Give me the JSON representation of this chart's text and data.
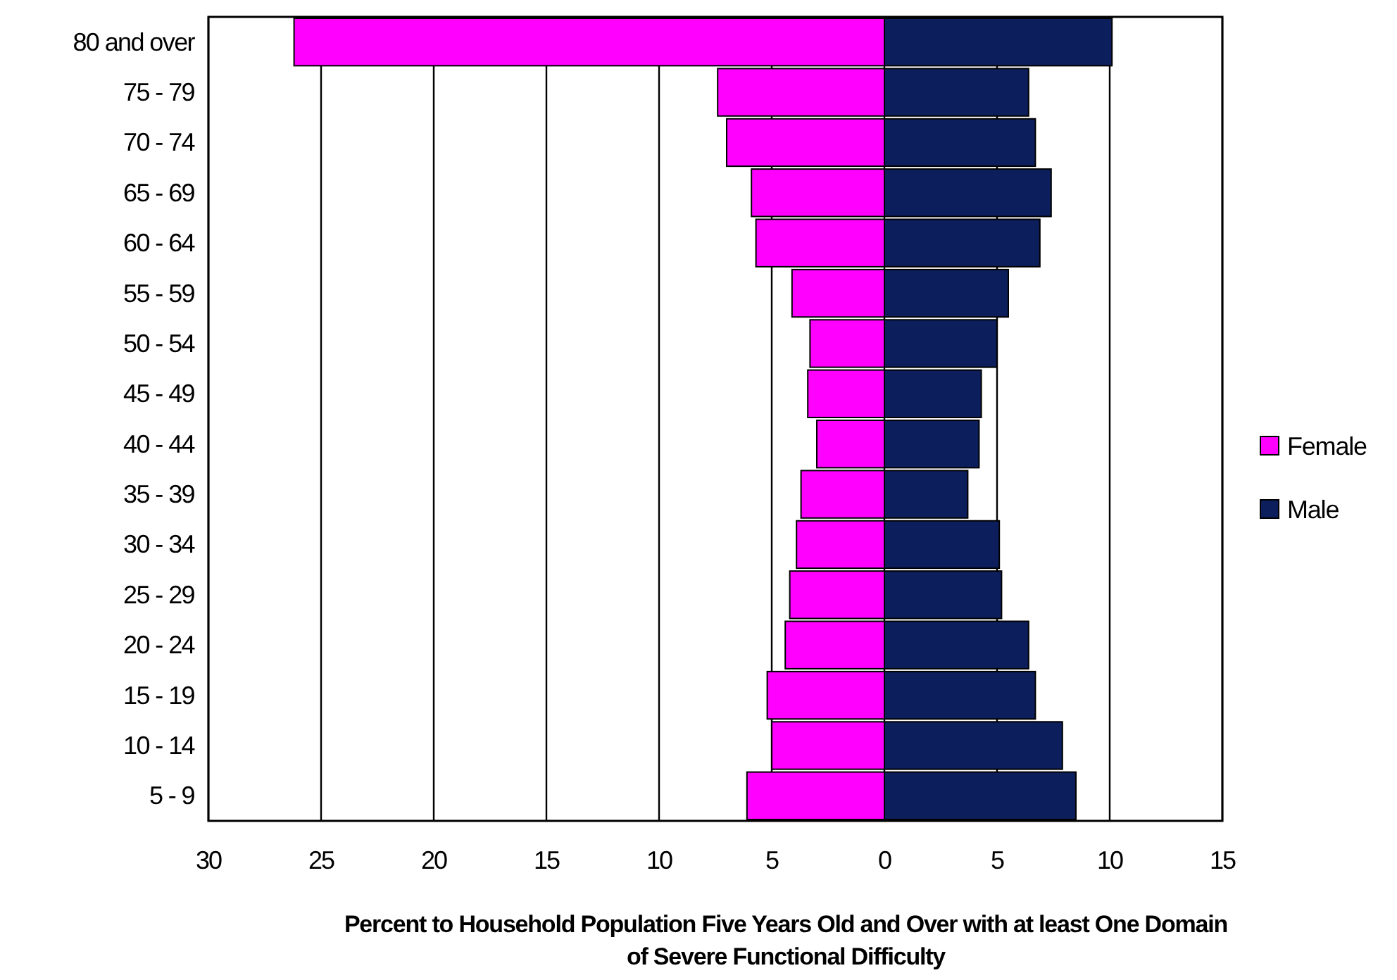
{
  "chart_data": {
    "type": "bar",
    "orientation": "horizontal",
    "xlabel": "Percent to Household Population Five Years Old and Over with at least One Domain of Severe Functional Difficulty",
    "categories": [
      "80 and over",
      "75 - 79",
      "70 - 74",
      "65 - 69",
      "60 - 64",
      "55 - 59",
      "50 - 54",
      "45 - 49",
      "40 - 44",
      "35 - 39",
      "30 - 34",
      "25 - 29",
      "20 - 24",
      "15 - 19",
      "10 - 14",
      "5 -  9"
    ],
    "series": [
      {
        "name": "Female",
        "color": "#ff00ff",
        "values": [
          -26.2,
          -7.4,
          -7.0,
          -5.9,
          -5.7,
          -4.1,
          -3.3,
          -3.4,
          -3.0,
          -3.7,
          -3.9,
          -4.2,
          -4.4,
          -5.2,
          -5.0,
          -6.1
        ]
      },
      {
        "name": "Male",
        "color": "#0c1f5c",
        "values": [
          10.1,
          6.4,
          6.7,
          7.4,
          6.9,
          5.5,
          5.0,
          4.3,
          4.2,
          3.7,
          5.1,
          5.2,
          6.4,
          6.7,
          7.9,
          8.5
        ]
      }
    ],
    "xlim": [
      -30,
      15
    ],
    "xticks": [
      {
        "value": -30,
        "label": "30"
      },
      {
        "value": -25,
        "label": "25"
      },
      {
        "value": -20,
        "label": "20"
      },
      {
        "value": -15,
        "label": "15"
      },
      {
        "value": -10,
        "label": "10"
      },
      {
        "value": -5,
        "label": "5"
      },
      0,
      5,
      10,
      15
    ],
    "stacked": true,
    "grid": "x",
    "legend": "right"
  }
}
